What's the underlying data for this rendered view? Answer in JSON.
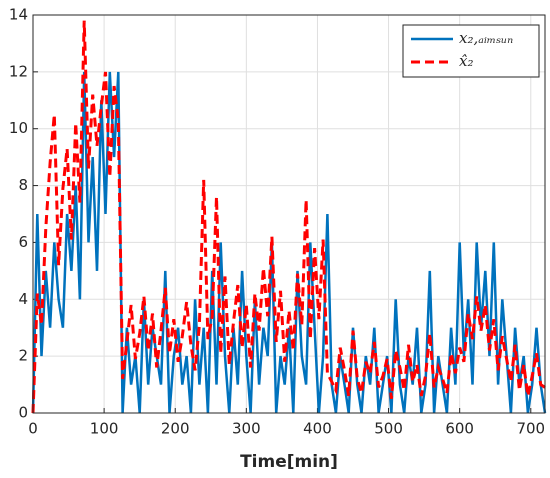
{
  "chart_data": {
    "type": "line",
    "xlabel": "Time[min]",
    "x": [
      0,
      6,
      12,
      18,
      24,
      30,
      36,
      42,
      48,
      54,
      60,
      66,
      72,
      78,
      84,
      90,
      96,
      102,
      108,
      114,
      120,
      126,
      132,
      138,
      144,
      150,
      156,
      162,
      168,
      174,
      180,
      186,
      192,
      198,
      204,
      210,
      216,
      222,
      228,
      234,
      240,
      246,
      252,
      258,
      264,
      270,
      276,
      282,
      288,
      294,
      300,
      306,
      312,
      318,
      324,
      330,
      336,
      342,
      348,
      354,
      360,
      366,
      372,
      378,
      384,
      390,
      396,
      402,
      408,
      414,
      420,
      426,
      432,
      438,
      444,
      450,
      456,
      462,
      468,
      474,
      480,
      486,
      492,
      498,
      504,
      510,
      516,
      522,
      528,
      534,
      540,
      546,
      552,
      558,
      564,
      570,
      576,
      582,
      588,
      594,
      600,
      606,
      612,
      618,
      624,
      630,
      636,
      642,
      648,
      654,
      660,
      666,
      672,
      678,
      684,
      690,
      696,
      702,
      708,
      714,
      720
    ],
    "series": [
      {
        "name": "x₂,ₐᵢₘₛᵤₙ",
        "color": "#0072bd",
        "dash": false,
        "values": [
          0,
          7,
          2,
          5,
          3,
          6,
          4,
          3,
          7,
          5,
          8,
          4,
          12,
          6,
          9,
          5,
          11,
          7,
          12,
          9,
          12,
          0,
          3,
          1,
          2,
          0,
          4,
          1,
          3,
          2,
          1,
          5,
          0,
          2,
          3,
          1,
          2,
          0,
          4,
          1,
          3,
          0,
          5,
          1,
          6,
          2,
          0,
          3,
          1,
          5,
          2,
          0,
          4,
          1,
          3,
          2,
          6,
          0,
          2,
          1,
          3,
          0,
          5,
          2,
          1,
          6,
          3,
          0,
          2,
          7,
          1,
          0,
          2,
          1,
          0,
          3,
          1,
          0,
          2,
          1,
          3,
          0,
          1,
          2,
          0,
          4,
          1,
          0,
          2,
          1,
          3,
          0,
          1,
          5,
          0,
          2,
          1,
          0,
          3,
          1,
          6,
          2,
          4,
          1,
          6,
          3,
          5,
          2,
          6,
          1,
          4,
          2,
          0,
          3,
          1,
          2,
          0,
          1,
          3,
          1,
          0
        ]
      },
      {
        "name": "x̂₂",
        "color": "#ff0000",
        "dash": true,
        "values": [
          0,
          4.2,
          3.1,
          6.5,
          8.8,
          10.5,
          5.2,
          7.9,
          9.3,
          6.1,
          10.2,
          7.4,
          13.8,
          8.6,
          11.2,
          9.4,
          10.8,
          12,
          8.3,
          11.5,
          10.3,
          1.2,
          2.5,
          3.8,
          1.9,
          2.8,
          4.1,
          2.2,
          3.5,
          1.6,
          2.9,
          4.4,
          2.1,
          3.3,
          1.8,
          2.7,
          3.9,
          2.4,
          1.5,
          3.1,
          8.2,
          2.6,
          3.4,
          7.6,
          2.1,
          4.8,
          1.7,
          3.2,
          4.5,
          2.3,
          3.8,
          1.6,
          4.2,
          2.9,
          5.1,
          3.4,
          6.2,
          2.5,
          4.3,
          1.8,
          3.6,
          2.2,
          4.9,
          3.1,
          7.5,
          2.6,
          5.8,
          3.3,
          6.1,
          1.4,
          1.1,
          0.8,
          2.3,
          1.5,
          0.6,
          2.9,
          1.2,
          0.7,
          1.8,
          1.4,
          2.5,
          0.9,
          1.3,
          1.9,
          0.5,
          2.2,
          1.6,
          0.8,
          2.4,
          1.1,
          1.7,
          0.6,
          1.3,
          2.8,
          0.9,
          1.6,
          1.2,
          0.7,
          2.1,
          1.4,
          2.3,
          1.8,
          3.5,
          2.6,
          4.1,
          2.9,
          3.8,
          2.2,
          3.3,
          1.5,
          2.7,
          1.9,
          1.1,
          2.4,
          0.8,
          1.7,
          0.6,
          1.3,
          2.1,
          1.0,
          0.9
        ]
      }
    ],
    "xlim": [
      0,
      720
    ],
    "xticks": [
      0,
      100,
      200,
      300,
      400,
      500,
      600,
      700
    ],
    "ylim": [
      0,
      14
    ],
    "yticks": [
      0,
      2,
      4,
      6,
      8,
      10,
      12,
      14
    ],
    "grid": true,
    "legend": "upper right"
  }
}
